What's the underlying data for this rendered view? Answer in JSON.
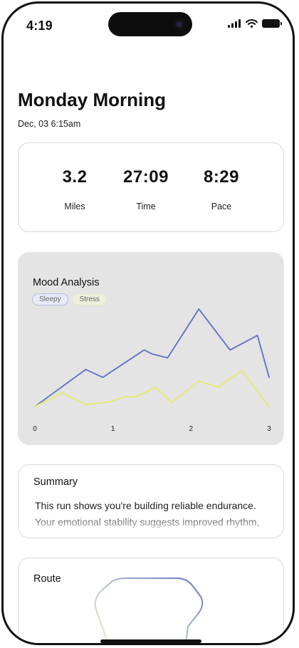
{
  "status_bar": {
    "time": "4:19"
  },
  "header": {
    "title": "Monday Morning",
    "date": "Dec, 03 6:15am"
  },
  "stats": [
    {
      "value": "3.2",
      "label": "Miles"
    },
    {
      "value": "27:09",
      "label": "Time"
    },
    {
      "value": "8:29",
      "label": "Pace"
    }
  ],
  "mood": {
    "title": "Mood Analysis",
    "legend": [
      "Sleepy",
      "Stress"
    ]
  },
  "chart_data": {
    "type": "line",
    "title": "Mood Analysis",
    "x_ticks": [
      "0",
      "1",
      "2",
      "3"
    ],
    "xlim": [
      0,
      3
    ],
    "ylim": [
      0,
      1
    ],
    "grid": false,
    "legend_position": "top-left",
    "series": [
      {
        "name": "Sleepy",
        "color": "#6a78c7",
        "x": [
          0,
          0.65,
          0.87,
          1.4,
          1.5,
          1.6,
          1.7,
          2.1,
          2.5,
          2.85,
          3.0
        ],
        "y": [
          0.0,
          0.38,
          0.3,
          0.58,
          0.54,
          0.52,
          0.5,
          1.0,
          0.58,
          0.73,
          0.3
        ]
      },
      {
        "name": "Stress",
        "color": "#e6ea78",
        "x": [
          0,
          0.35,
          0.65,
          0.95,
          1.15,
          1.3,
          1.4,
          1.55,
          1.75,
          2.1,
          2.35,
          2.65,
          3.0
        ],
        "y": [
          0.0,
          0.14,
          0.02,
          0.05,
          0.1,
          0.1,
          0.14,
          0.2,
          0.04,
          0.26,
          0.2,
          0.37,
          0.0
        ]
      }
    ]
  },
  "summary": {
    "title": "Summary",
    "text": "This run shows you're building reliable endurance. Your emotional stability suggests improved rhythm, breathing control, and stride"
  },
  "route": {
    "title": "Route"
  },
  "colors": {
    "sleepy": "#6a78c7",
    "stress": "#e6ea78",
    "card_bg": "#e4e4e4"
  }
}
